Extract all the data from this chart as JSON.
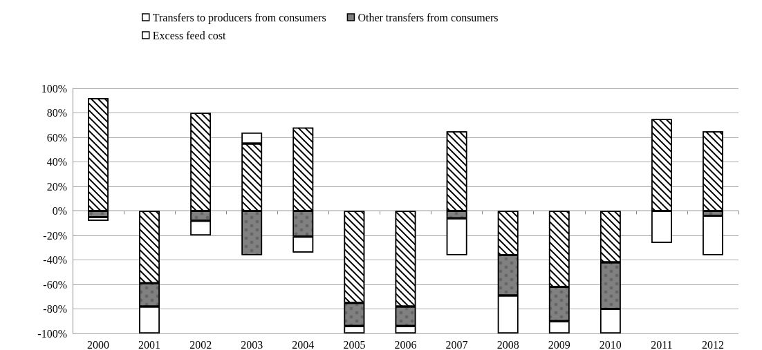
{
  "chart_data": {
    "type": "bar",
    "stacked": true,
    "categories": [
      "2000",
      "2001",
      "2002",
      "2003",
      "2004",
      "2005",
      "2006",
      "2007",
      "2008",
      "2009",
      "2010",
      "2011",
      "2012"
    ],
    "series": [
      {
        "name": "Transfers to producers from consumers",
        "color": "#ffffff",
        "values": [
          92,
          -59,
          80,
          55,
          68,
          -75,
          -78,
          65,
          -36,
          -62,
          -42,
          75,
          65
        ]
      },
      {
        "name": "Other transfers from consumers",
        "color": "#808080",
        "values": [
          -5,
          -19,
          -8,
          -36,
          -21,
          -19,
          -16,
          -6,
          -33,
          -28,
          -38,
          null,
          -4
        ]
      },
      {
        "name": "Excess feed cost",
        "color": "#ffffff",
        "values": [
          -3,
          -22,
          -12,
          9,
          -13,
          -6,
          -6,
          -30,
          -31,
          -10,
          -20,
          -26,
          -32
        ]
      }
    ],
    "ylim": [
      -100,
      100
    ],
    "yticks": [
      {
        "value": -100,
        "label": "-100%"
      },
      {
        "value": -80,
        "label": "-80%"
      },
      {
        "value": -60,
        "label": "-60%"
      },
      {
        "value": -40,
        "label": "-40%"
      },
      {
        "value": -20,
        "label": "-20%"
      },
      {
        "value": 0,
        "label": "0%"
      },
      {
        "value": 20,
        "label": "20%"
      },
      {
        "value": 40,
        "label": "40%"
      },
      {
        "value": 60,
        "label": "60%"
      },
      {
        "value": 80,
        "label": "80%"
      },
      {
        "value": 100,
        "label": "100%"
      }
    ],
    "grid": "y",
    "legend": "top"
  }
}
